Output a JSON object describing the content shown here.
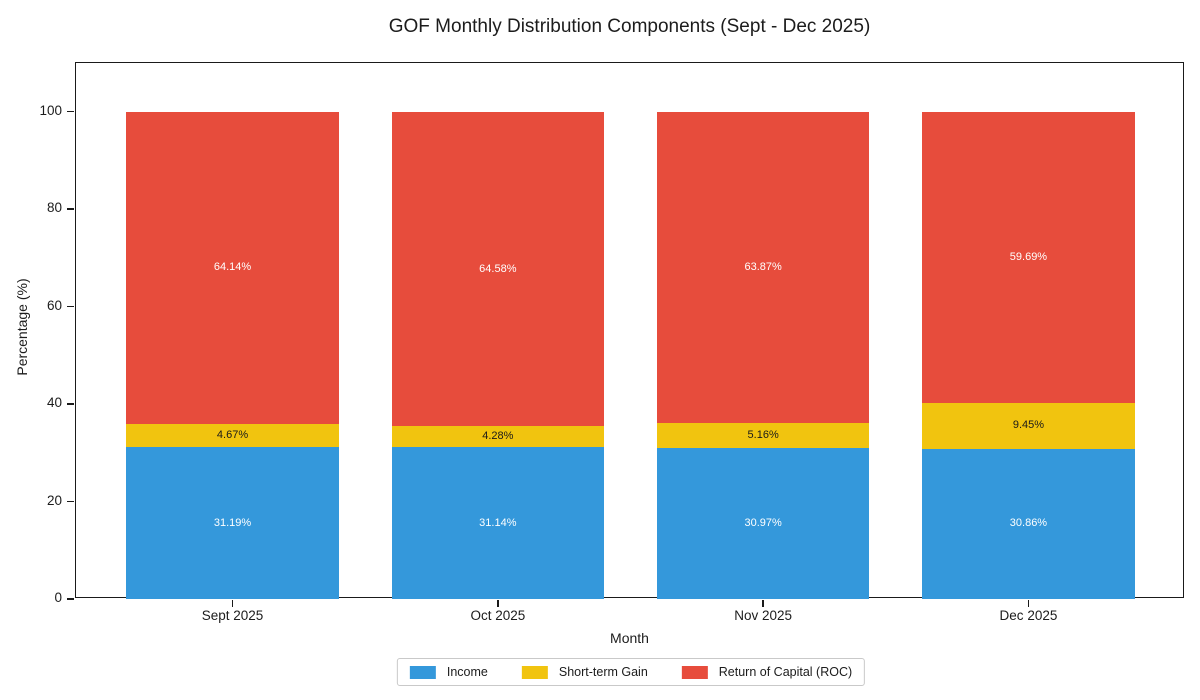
{
  "chart_data": {
    "type": "bar",
    "stacked": true,
    "title": "GOF Monthly Distribution Components (Sept - Dec 2025)",
    "xlabel": "Month",
    "ylabel": "Percentage (%)",
    "categories": [
      "Sept 2025",
      "Oct 2025",
      "Nov 2025",
      "Dec 2025"
    ],
    "series": [
      {
        "name": "Income",
        "color": "#3498db",
        "label_color": "#ffffff",
        "values": [
          31.19,
          31.14,
          30.97,
          30.86
        ]
      },
      {
        "name": "Short-term Gain",
        "color": "#f1c40f",
        "label_color": "#1a1a1a",
        "values": [
          4.67,
          4.28,
          5.16,
          9.45
        ]
      },
      {
        "name": "Return of Capital (ROC)",
        "color": "#e74c3c",
        "label_color": "#ffffff",
        "values": [
          64.14,
          64.58,
          63.87,
          59.69
        ]
      }
    ],
    "ylim": [
      0,
      110
    ],
    "yticks": [
      0,
      20,
      40,
      60,
      80,
      100
    ],
    "bar_label_suffix": "%",
    "grid": false,
    "legend_position": "bottom-center",
    "background_color": "#ffffff"
  }
}
